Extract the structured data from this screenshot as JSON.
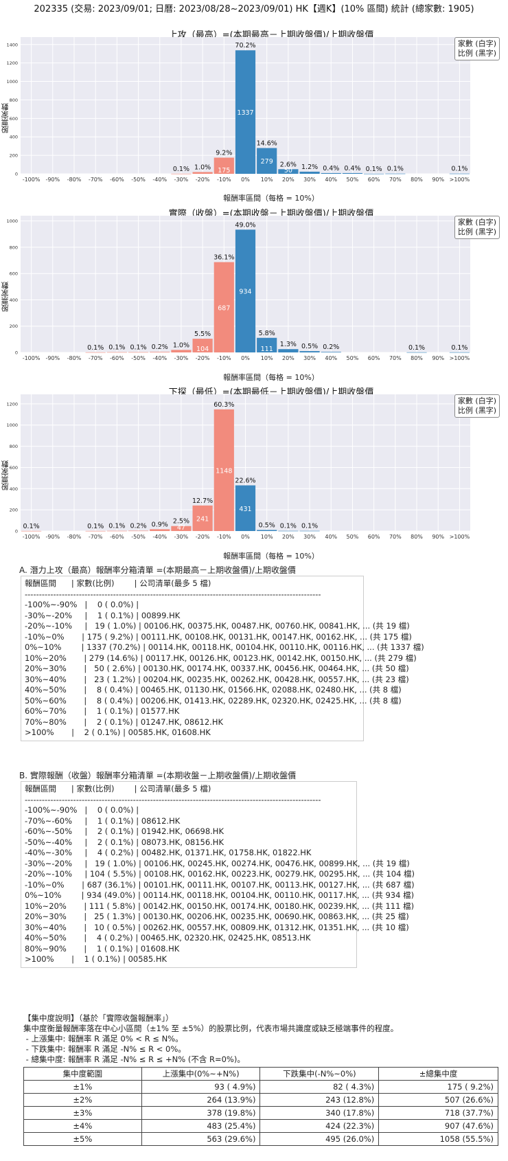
{
  "page_title": "202335 (交易: 2023/09/01; 日曆: 2023/08/28~2023/09/01) HK【週K】(10% 區間) 統計 (總家數: 1905)",
  "legend": {
    "line1": "家數 (白字)",
    "line2": "比例 (黑字)"
  },
  "colors": {
    "negative": "#f28b7d",
    "positive": "#3a87bf",
    "plot_bg": "#eaeaf2",
    "grid": "#ffffff"
  },
  "chart_data": [
    {
      "type": "bar",
      "title": "上攻（最高）=(本期最高－上期收盤價)/上期收盤價",
      "xlabel": "報酬率區間（每格 = 10%）",
      "ylabel": "股票家數",
      "ylim": [
        0,
        1480
      ],
      "yticks": [
        0,
        200,
        400,
        600,
        800,
        1000,
        1200,
        1400
      ],
      "categories": [
        "-100%",
        "-90%",
        "-80%",
        "-70%",
        "-60%",
        "-50%",
        "-40%",
        "-30%",
        "-20%",
        "-10%",
        "0%",
        "10%",
        "20%",
        "30%",
        "40%",
        "50%",
        "60%",
        "70%",
        "80%",
        "90%",
        ">100%"
      ],
      "bins": [
        {
          "x": -100,
          "count": 0,
          "pct": ""
        },
        {
          "x": -30,
          "count": 1,
          "pct": "0.1%"
        },
        {
          "x": -20,
          "count": 19,
          "pct": "1.0%"
        },
        {
          "x": -10,
          "count": 175,
          "pct": "9.2%"
        },
        {
          "x": 0,
          "count": 1337,
          "pct": "70.2%"
        },
        {
          "x": 10,
          "count": 279,
          "pct": "14.6%"
        },
        {
          "x": 20,
          "count": 50,
          "pct": "2.6%"
        },
        {
          "x": 30,
          "count": 23,
          "pct": "1.2%"
        },
        {
          "x": 40,
          "count": 8,
          "pct": "0.4%"
        },
        {
          "x": 50,
          "count": 8,
          "pct": "0.4%"
        },
        {
          "x": 60,
          "count": 1,
          "pct": "0.1%"
        },
        {
          "x": 70,
          "count": 2,
          "pct": "0.1%"
        },
        {
          "x": 100,
          "count": 2,
          "pct": "0.1%"
        }
      ]
    },
    {
      "type": "bar",
      "title": "實際（收盤）=(本期收盤－上期收盤價)/上期收盤價",
      "xlabel": "報酬率區間（每格 = 10%）",
      "ylabel": "股票家數",
      "ylim": [
        0,
        1040
      ],
      "yticks": [
        0,
        200,
        400,
        600,
        800,
        1000
      ],
      "categories": [
        "-100%",
        "-90%",
        "-80%",
        "-70%",
        "-60%",
        "-50%",
        "-40%",
        "-30%",
        "-20%",
        "-10%",
        "0%",
        "10%",
        "20%",
        "30%",
        "40%",
        "50%",
        "60%",
        "70%",
        "80%",
        "90%",
        ">100%"
      ],
      "bins": [
        {
          "x": -100,
          "count": 0,
          "pct": ""
        },
        {
          "x": -70,
          "count": 1,
          "pct": "0.1%"
        },
        {
          "x": -60,
          "count": 2,
          "pct": "0.1%"
        },
        {
          "x": -50,
          "count": 2,
          "pct": "0.1%"
        },
        {
          "x": -40,
          "count": 4,
          "pct": "0.2%"
        },
        {
          "x": -30,
          "count": 19,
          "pct": "1.0%"
        },
        {
          "x": -20,
          "count": 104,
          "pct": "5.5%"
        },
        {
          "x": -10,
          "count": 687,
          "pct": "36.1%"
        },
        {
          "x": 0,
          "count": 934,
          "pct": "49.0%"
        },
        {
          "x": 10,
          "count": 111,
          "pct": "5.8%"
        },
        {
          "x": 20,
          "count": 25,
          "pct": "1.3%"
        },
        {
          "x": 30,
          "count": 10,
          "pct": "0.5%"
        },
        {
          "x": 40,
          "count": 4,
          "pct": "0.2%"
        },
        {
          "x": 80,
          "count": 1,
          "pct": "0.1%"
        },
        {
          "x": 100,
          "count": 1,
          "pct": "0.1%"
        }
      ]
    },
    {
      "type": "bar",
      "title": "下探（最低）=(本期最低－上期收盤價)/上期收盤價",
      "xlabel": "報酬率區間（每格 = 10%）",
      "ylabel": "股票家數",
      "ylim": [
        0,
        1290
      ],
      "yticks": [
        0,
        200,
        400,
        600,
        800,
        1000,
        1200
      ],
      "categories": [
        "-100%",
        "-90%",
        "-80%",
        "-70%",
        "-60%",
        "-50%",
        "-40%",
        "-30%",
        "-20%",
        "-10%",
        "0%",
        "10%",
        "20%",
        "30%",
        "40%",
        "50%",
        "60%",
        "70%",
        "80%",
        "90%",
        ">100%"
      ],
      "bins": [
        {
          "x": -100,
          "count": 1,
          "pct": "0.1%"
        },
        {
          "x": -70,
          "count": 1,
          "pct": "0.1%"
        },
        {
          "x": -60,
          "count": 2,
          "pct": "0.1%"
        },
        {
          "x": -50,
          "count": 3,
          "pct": "0.2%"
        },
        {
          "x": -40,
          "count": 17,
          "pct": "0.9%"
        },
        {
          "x": -30,
          "count": 47,
          "pct": "2.5%"
        },
        {
          "x": -20,
          "count": 241,
          "pct": "12.7%"
        },
        {
          "x": -10,
          "count": 1148,
          "pct": "60.3%"
        },
        {
          "x": 0,
          "count": 431,
          "pct": "22.6%"
        },
        {
          "x": 10,
          "count": 10,
          "pct": "0.5%"
        },
        {
          "x": 20,
          "count": 2,
          "pct": "0.1%"
        },
        {
          "x": 30,
          "count": 2,
          "pct": "0.1%"
        }
      ]
    }
  ],
  "section_a": {
    "title": "A. 潛力上攻（最高）報酬率分箱清單 =(本期最高－上期收盤價)/上期收盤價",
    "lines": [
      "報酬區間      | 家數(比例)        | 公司清單(最多 5 檔)",
      "--------------------------------------------------------------------------------------------------------",
      "-100%~-90%   |    0 ( 0.0%) |",
      "-30%~-20%     |    1 ( 0.1%) | 00899.HK",
      "-20%~-10%     |   19 ( 1.0%) | 00106.HK, 00375.HK, 00487.HK, 00760.HK, 00841.HK, ... (共 19 檔)",
      "-10%~0%       | 175 ( 9.2%) | 00111.HK, 00108.HK, 00131.HK, 00147.HK, 00162.HK, ... (共 175 檔)",
      "0%~10%        | 1337 (70.2%) | 00114.HK, 00118.HK, 00104.HK, 00110.HK, 00116.HK, ... (共 1337 檔)",
      "10%~20%       | 279 (14.6%) | 00117.HK, 00126.HK, 00123.HK, 00142.HK, 00150.HK, ... (共 279 檔)",
      "20%~30%       |   50 ( 2.6%) | 00130.HK, 00174.HK, 00337.HK, 00456.HK, 00464.HK, ... (共 50 檔)",
      "30%~40%       |   23 ( 1.2%) | 00204.HK, 00235.HK, 00262.HK, 00428.HK, 00557.HK, ... (共 23 檔)",
      "40%~50%       |    8 ( 0.4%) | 00465.HK, 01130.HK, 01566.HK, 02088.HK, 02480.HK, ... (共 8 檔)",
      "50%~60%       |    8 ( 0.4%) | 00206.HK, 01413.HK, 02289.HK, 02320.HK, 02425.HK, ... (共 8 檔)",
      "60%~70%       |    1 ( 0.1%) | 01577.HK",
      "70%~80%       |    2 ( 0.1%) | 01247.HK, 08612.HK",
      ">100%       |    2 ( 0.1%) | 00585.HK, 01608.HK"
    ]
  },
  "section_b": {
    "title": "B. 實際報酬（收盤）報酬率分箱清單 =(本期收盤－上期收盤價)/上期收盤價",
    "lines": [
      "報酬區間      | 家數(比例)        | 公司清單(最多 5 檔)",
      "--------------------------------------------------------------------------------------------------------",
      "-100%~-90%   |    0 ( 0.0%) |",
      "-70%~-60%     |    1 ( 0.1%) | 08612.HK",
      "-60%~-50%     |    2 ( 0.1%) | 01942.HK, 06698.HK",
      "-50%~-40%     |    2 ( 0.1%) | 08073.HK, 08156.HK",
      "-40%~-30%     |    4 ( 0.2%) | 00482.HK, 01371.HK, 01758.HK, 01822.HK",
      "-30%~-20%     |   19 ( 1.0%) | 00106.HK, 00245.HK, 00274.HK, 00476.HK, 00899.HK, ... (共 19 檔)",
      "-20%~-10%     | 104 ( 5.5%) | 00108.HK, 00162.HK, 00223.HK, 00279.HK, 00295.HK, ... (共 104 檔)",
      "-10%~0%       | 687 (36.1%) | 00101.HK, 00111.HK, 00107.HK, 00113.HK, 00127.HK, ... (共 687 檔)",
      "0%~10%        | 934 (49.0%) | 00114.HK, 00118.HK, 00104.HK, 00110.HK, 00117.HK, ... (共 934 檔)",
      "10%~20%       | 111 ( 5.8%) | 00142.HK, 00150.HK, 00174.HK, 00180.HK, 00239.HK, ... (共 111 檔)",
      "20%~30%       |   25 ( 1.3%) | 00130.HK, 00206.HK, 00235.HK, 00690.HK, 00863.HK, ... (共 25 檔)",
      "30%~40%       |   10 ( 0.5%) | 00262.HK, 00557.HK, 00809.HK, 01312.HK, 01351.HK, ... (共 10 檔)",
      "40%~50%       |    4 ( 0.2%) | 00465.HK, 02320.HK, 02425.HK, 08513.HK",
      "80%~90%       |    1 ( 0.1%) | 01608.HK",
      ">100%       |    1 ( 0.1%) | 00585.HK"
    ]
  },
  "note": {
    "lines": [
      "【集中度說明】（基於「實際收盤報酬率」）",
      "集中度衡量報酬率落在中心小區間（±1% 至 ±5%）的股票比例，代表市場共識度或缺乏極端事件的程度。",
      " - 上漲集中: 報酬率 R 滿足 0% < R ≤ N%。",
      " - 下跌集中: 報酬率 R 滿足 -N% ≤ R < 0%。",
      " - 總集中度: 報酬率 R 滿足 -N% ≤ R ≤ +N% (不含 R=0%)。"
    ]
  },
  "concentration_table": {
    "headers": [
      "集中度範圍",
      "上漲集中(0%~+N%)",
      "下跌集中(-N%~0%)",
      "±總集中度"
    ],
    "rows": [
      [
        "±1%",
        "93 ( 4.9%)",
        "82 ( 4.3%)",
        "175 ( 9.2%)"
      ],
      [
        "±2%",
        "264 (13.9%)",
        "243 (12.8%)",
        "507 (26.6%)"
      ],
      [
        "±3%",
        "378 (19.8%)",
        "340 (17.8%)",
        "718 (37.7%)"
      ],
      [
        "±4%",
        "483 (25.4%)",
        "424 (22.3%)",
        "907 (47.6%)"
      ],
      [
        "±5%",
        "563 (29.6%)",
        "495 (26.0%)",
        "1058 (55.5%)"
      ]
    ]
  }
}
